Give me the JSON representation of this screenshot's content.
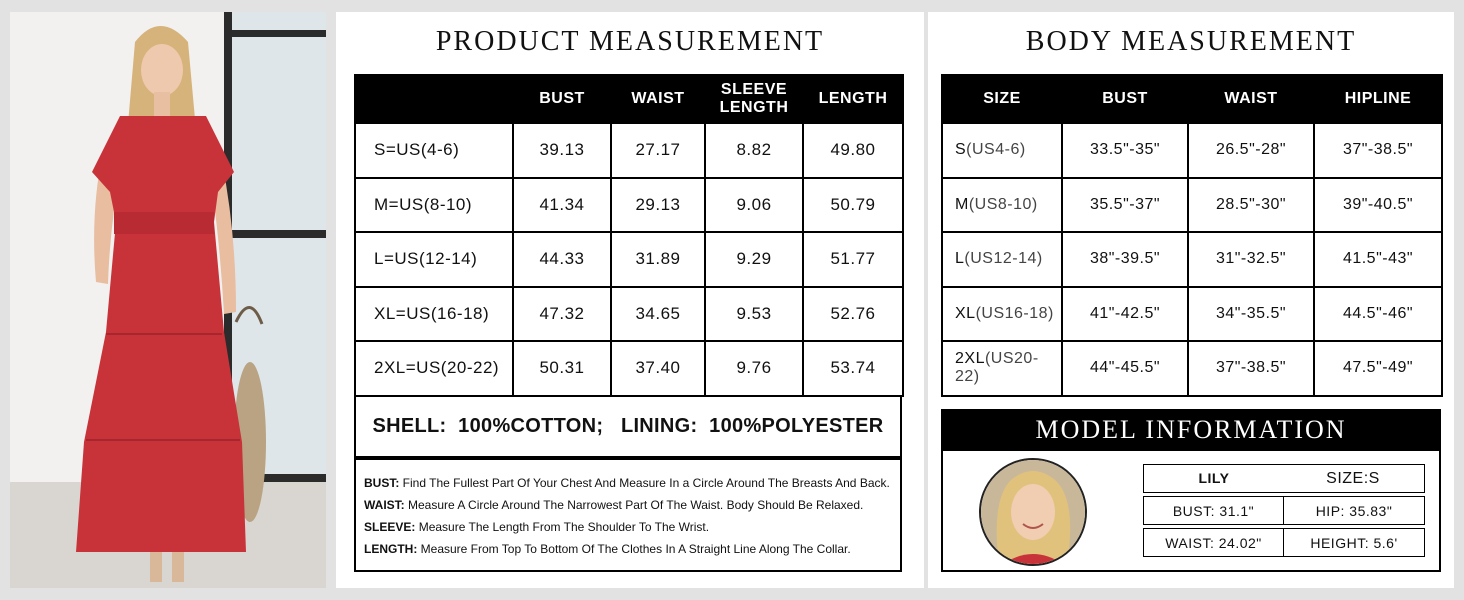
{
  "product": {
    "title": "PRODUCT MEASUREMENT",
    "headers": [
      "",
      "BUST",
      "WAIST",
      "SLEEVE LENGTH",
      "LENGTH"
    ],
    "header_sleeve_1": "SLEEVE",
    "header_sleeve_2": "LENGTH",
    "rows": [
      {
        "size": "S=US(4-6)",
        "bust": "39.13",
        "waist": "27.17",
        "sleeve": "8.82",
        "length": "49.80"
      },
      {
        "size": "M=US(8-10)",
        "bust": "41.34",
        "waist": "29.13",
        "sleeve": "9.06",
        "length": "50.79"
      },
      {
        "size": "L=US(12-14)",
        "bust": "44.33",
        "waist": "31.89",
        "sleeve": "9.29",
        "length": "51.77"
      },
      {
        "size": "XL=US(16-18)",
        "bust": "47.32",
        "waist": "34.65",
        "sleeve": "9.53",
        "length": "52.76"
      },
      {
        "size": "2XL=US(20-22)",
        "bust": "50.31",
        "waist": "37.40",
        "sleeve": "9.76",
        "length": "53.74"
      }
    ],
    "material": "SHELL:  100%COTTON;   LINING:  100%POLYESTER",
    "notes": [
      {
        "label": "BUST:",
        "text": " Find The Fullest Part Of Your Chest And Measure In a Circle Around The Breasts And Back."
      },
      {
        "label": "WAIST:",
        "text": " Measure A Circle Around The Narrowest Part Of The Waist. Body Should Be Relaxed."
      },
      {
        "label": "SLEEVE:",
        "text": " Measure The Length From The Shoulder To The Wrist."
      },
      {
        "label": "LENGTH:",
        "text": " Measure From Top To Bottom Of The Clothes In A Straight Line Along The Collar."
      }
    ]
  },
  "body": {
    "title": "BODY MEASUREMENT",
    "headers": [
      "SIZE",
      "BUST",
      "WAIST",
      "HIPLINE"
    ],
    "rows": [
      {
        "size": "S",
        "us": "(US4-6)",
        "bust": "33.5\"-35\"",
        "waist": "26.5\"-28\"",
        "hip": "37\"-38.5\""
      },
      {
        "size": "M",
        "us": "(US8-10)",
        "bust": "35.5\"-37\"",
        "waist": "28.5\"-30\"",
        "hip": "39\"-40.5\""
      },
      {
        "size": "L",
        "us": "(US12-14)",
        "bust": "38\"-39.5\"",
        "waist": "31\"-32.5\"",
        "hip": "41.5\"-43\""
      },
      {
        "size": "XL",
        "us": "(US16-18)",
        "bust": "41\"-42.5\"",
        "waist": "34\"-35.5\"",
        "hip": "44.5\"-46\""
      },
      {
        "size": "2XL",
        "us": "(US20-22)",
        "bust": "44\"-45.5\"",
        "waist": "37\"-38.5\"",
        "hip": "47.5\"-49\""
      }
    ]
  },
  "model": {
    "title": "MODEL INFORMATION",
    "name": "LILY",
    "size": "SIZE:S",
    "bust": "BUST: 31.1\"",
    "hip": "HIP: 35.83\"",
    "waist": "WAIST: 24.02\"",
    "height": "HEIGHT: 5.6'"
  },
  "colors": {
    "dress": "#c8333a",
    "header_bg": "#000000",
    "panel_bg": "#ffffff",
    "page_bg": "#e2e2e2"
  }
}
